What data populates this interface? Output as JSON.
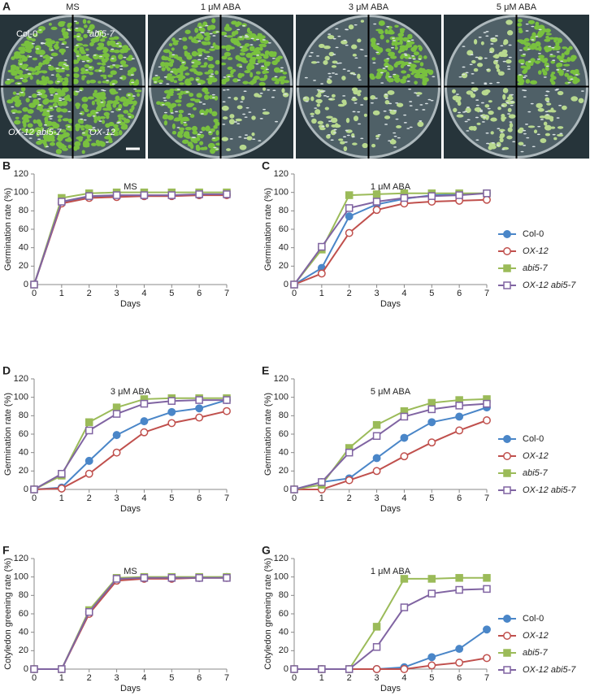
{
  "panel_a": {
    "label": "A",
    "plates": [
      {
        "title": "MS"
      },
      {
        "title": "1 μM ABA"
      },
      {
        "title": "3 μM ABA"
      },
      {
        "title": "5 μM ABA"
      }
    ],
    "genotypes": [
      "Col-0",
      "abi5-7",
      "OX-12 abi5-7",
      "OX-12"
    ]
  },
  "chart_data": [
    {
      "type": "line",
      "label": "B",
      "title": "MS",
      "xlabel": "Days",
      "ylabel": "Germination rate (%)",
      "x": [
        0,
        1,
        2,
        3,
        4,
        5,
        6,
        7
      ],
      "xlim": [
        0,
        7
      ],
      "xticks": [
        0,
        1,
        2,
        3,
        4,
        5,
        6,
        7
      ],
      "ylim": [
        0,
        120
      ],
      "yticks": [
        0,
        20,
        40,
        60,
        80,
        100,
        120
      ],
      "series": [
        {
          "color": "#4a86c8",
          "marker": "circle",
          "filled": true,
          "values": [
            0,
            89,
            95,
            96,
            96,
            97,
            97,
            98
          ]
        },
        {
          "color": "#c0504d",
          "marker": "circle",
          "filled": false,
          "values": [
            0,
            88,
            94,
            95,
            96,
            96,
            97,
            97
          ]
        },
        {
          "color": "#9bbb59",
          "marker": "square",
          "filled": true,
          "values": [
            0,
            94,
            99,
            100,
            100,
            100,
            100,
            100
          ]
        },
        {
          "color": "#8064a2",
          "marker": "square",
          "filled": false,
          "values": [
            0,
            90,
            96,
            97,
            97,
            97,
            98,
            98
          ]
        }
      ]
    },
    {
      "type": "line",
      "label": "C",
      "title": "1 μM ABA",
      "xlabel": "Days",
      "ylabel": "Germination rate (%)",
      "x": [
        0,
        1,
        2,
        3,
        4,
        5,
        6,
        7
      ],
      "xlim": [
        0,
        7
      ],
      "xticks": [
        0,
        1,
        2,
        3,
        4,
        5,
        6,
        7
      ],
      "ylim": [
        0,
        120
      ],
      "yticks": [
        0,
        20,
        40,
        60,
        80,
        100,
        120
      ],
      "legend": "right",
      "series": [
        {
          "name": "Col-0",
          "color": "#4a86c8",
          "marker": "circle",
          "filled": true,
          "values": [
            0,
            18,
            74,
            87,
            93,
            97,
            98,
            99
          ]
        },
        {
          "name": "OX-12",
          "color": "#c0504d",
          "marker": "circle",
          "filled": false,
          "values": [
            0,
            12,
            56,
            81,
            88,
            90,
            91,
            92
          ]
        },
        {
          "name": "abi5-7",
          "color": "#9bbb59",
          "marker": "square",
          "filled": true,
          "values": [
            0,
            38,
            97,
            98,
            99,
            99,
            99,
            99
          ]
        },
        {
          "name": "OX-12 abi5-7",
          "color": "#8064a2",
          "marker": "square",
          "filled": false,
          "values": [
            0,
            41,
            83,
            90,
            94,
            96,
            97,
            99
          ]
        }
      ]
    },
    {
      "type": "line",
      "label": "D",
      "title": "3 μM ABA",
      "xlabel": "Days",
      "ylabel": "Germination rate (%)",
      "x": [
        0,
        1,
        2,
        3,
        4,
        5,
        6,
        7
      ],
      "xlim": [
        0,
        7
      ],
      "xticks": [
        0,
        1,
        2,
        3,
        4,
        5,
        6,
        7
      ],
      "ylim": [
        0,
        120
      ],
      "yticks": [
        0,
        20,
        40,
        60,
        80,
        100,
        120
      ],
      "series": [
        {
          "color": "#4a86c8",
          "marker": "circle",
          "filled": true,
          "values": [
            0,
            2,
            31,
            59,
            74,
            84,
            88,
            97
          ]
        },
        {
          "color": "#c0504d",
          "marker": "circle",
          "filled": false,
          "values": [
            0,
            1,
            17,
            40,
            62,
            72,
            78,
            85
          ]
        },
        {
          "color": "#9bbb59",
          "marker": "square",
          "filled": true,
          "values": [
            0,
            15,
            73,
            89,
            98,
            99,
            99,
            99
          ]
        },
        {
          "color": "#8064a2",
          "marker": "square",
          "filled": false,
          "values": [
            0,
            17,
            64,
            82,
            93,
            96,
            97,
            97
          ]
        }
      ]
    },
    {
      "type": "line",
      "label": "E",
      "title": "5 μM ABA",
      "xlabel": "Days",
      "ylabel": "Germination rate (%)",
      "x": [
        0,
        1,
        2,
        3,
        4,
        5,
        6,
        7
      ],
      "xlim": [
        0,
        7
      ],
      "xticks": [
        0,
        1,
        2,
        3,
        4,
        5,
        6,
        7
      ],
      "ylim": [
        0,
        120
      ],
      "yticks": [
        0,
        20,
        40,
        60,
        80,
        100,
        120
      ],
      "legend": "right",
      "series": [
        {
          "name": "Col-0",
          "color": "#4a86c8",
          "marker": "circle",
          "filled": true,
          "values": [
            0,
            8,
            12,
            34,
            56,
            73,
            79,
            89
          ]
        },
        {
          "name": "OX-12",
          "color": "#c0504d",
          "marker": "circle",
          "filled": false,
          "values": [
            0,
            0,
            10,
            20,
            36,
            51,
            64,
            75
          ]
        },
        {
          "name": "abi5-7",
          "color": "#9bbb59",
          "marker": "square",
          "filled": true,
          "values": [
            0,
            5,
            45,
            70,
            85,
            94,
            97,
            98
          ]
        },
        {
          "name": "OX-12 abi5-7",
          "color": "#8064a2",
          "marker": "square",
          "filled": false,
          "values": [
            0,
            8,
            40,
            58,
            79,
            87,
            91,
            93
          ]
        }
      ]
    },
    {
      "type": "line",
      "label": "F",
      "title": "MS",
      "xlabel": "Days",
      "ylabel": "Cotyledon greening rate (%)",
      "x": [
        0,
        1,
        2,
        3,
        4,
        5,
        6,
        7
      ],
      "xlim": [
        0,
        7
      ],
      "xticks": [
        0,
        1,
        2,
        3,
        4,
        5,
        6,
        7
      ],
      "ylim": [
        0,
        120
      ],
      "yticks": [
        0,
        20,
        40,
        60,
        80,
        100,
        120
      ],
      "series": [
        {
          "color": "#4a86c8",
          "marker": "circle",
          "filled": true,
          "values": [
            0,
            0,
            62,
            97,
            99,
            99,
            99,
            100
          ]
        },
        {
          "color": "#c0504d",
          "marker": "circle",
          "filled": false,
          "values": [
            0,
            0,
            60,
            96,
            98,
            98,
            99,
            99
          ]
        },
        {
          "color": "#9bbb59",
          "marker": "square",
          "filled": true,
          "values": [
            0,
            0,
            64,
            99,
            100,
            100,
            100,
            100
          ]
        },
        {
          "color": "#8064a2",
          "marker": "square",
          "filled": false,
          "values": [
            0,
            0,
            62,
            98,
            99,
            99,
            99,
            99
          ]
        }
      ]
    },
    {
      "type": "line",
      "label": "G",
      "title": "1 μM ABA",
      "xlabel": "Days",
      "ylabel": "Cotyledon greening rate (%)",
      "x": [
        0,
        1,
        2,
        3,
        4,
        5,
        6,
        7
      ],
      "xlim": [
        0,
        7
      ],
      "xticks": [
        0,
        1,
        2,
        3,
        4,
        5,
        6,
        7
      ],
      "ylim": [
        0,
        120
      ],
      "yticks": [
        0,
        20,
        40,
        60,
        80,
        100,
        120
      ],
      "legend": "right",
      "series": [
        {
          "name": "Col-0",
          "color": "#4a86c8",
          "marker": "circle",
          "filled": true,
          "values": [
            0,
            0,
            0,
            0,
            2,
            13,
            22,
            43
          ]
        },
        {
          "name": "OX-12",
          "color": "#c0504d",
          "marker": "circle",
          "filled": false,
          "values": [
            0,
            0,
            0,
            0,
            0,
            4,
            7,
            12
          ]
        },
        {
          "name": "abi5-7",
          "color": "#9bbb59",
          "marker": "square",
          "filled": true,
          "values": [
            0,
            0,
            0,
            46,
            98,
            98,
            99,
            99
          ]
        },
        {
          "name": "OX-12 abi5-7",
          "color": "#8064a2",
          "marker": "square",
          "filled": false,
          "values": [
            0,
            0,
            0,
            24,
            67,
            82,
            86,
            87
          ]
        }
      ]
    }
  ]
}
